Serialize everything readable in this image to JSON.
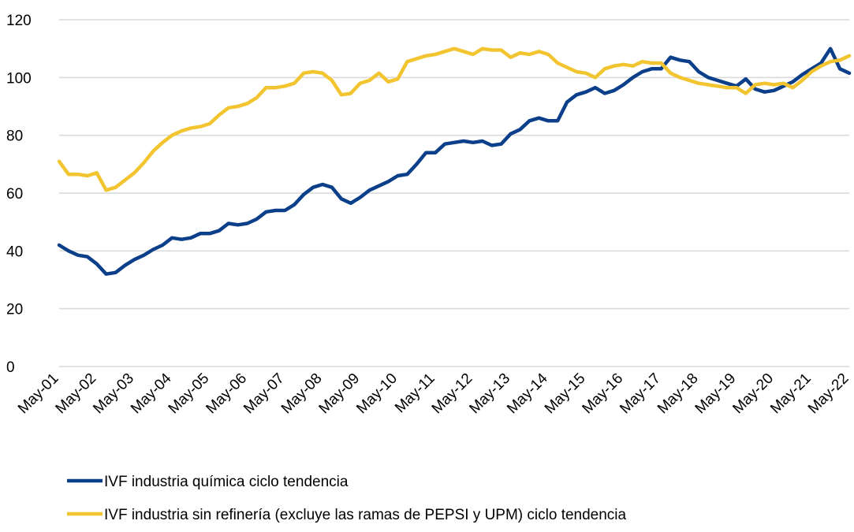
{
  "chart_data": {
    "type": "line",
    "categories": [
      "May-01",
      null,
      null,
      null,
      "May-02",
      null,
      null,
      null,
      "May-03",
      null,
      null,
      null,
      "May-04",
      null,
      null,
      null,
      "May-05",
      null,
      null,
      null,
      "May-06",
      null,
      null,
      null,
      "May-07",
      null,
      null,
      null,
      "May-08",
      null,
      null,
      null,
      "May-09",
      null,
      null,
      null,
      "May-10",
      null,
      null,
      null,
      "May-11",
      null,
      null,
      null,
      "May-12",
      null,
      null,
      null,
      "May-13",
      null,
      null,
      null,
      "May-14",
      null,
      null,
      null,
      "May-15",
      null,
      null,
      null,
      "May-16",
      null,
      null,
      null,
      "May-17",
      null,
      null,
      null,
      "May-18",
      null,
      null,
      null,
      "May-19",
      null,
      null,
      null,
      "May-20",
      null,
      null,
      null,
      "May-21",
      null,
      null,
      null,
      "May-22"
    ],
    "series": [
      {
        "name": "IVF industria química ciclo tendencia",
        "color": "#0b3f8a",
        "values": [
          42,
          40,
          38.5,
          38,
          35.5,
          32,
          32.5,
          35,
          37,
          38.5,
          40.5,
          42,
          44.5,
          44,
          44.5,
          46,
          46,
          47,
          49.5,
          49,
          49.5,
          51,
          53.5,
          54,
          54,
          56,
          59.5,
          62,
          63,
          62,
          58,
          56.5,
          58.5,
          61,
          62.5,
          64,
          66,
          66.5,
          70,
          74,
          74,
          77,
          77.5,
          78,
          77.5,
          78,
          76.5,
          77,
          80.5,
          82,
          85,
          86,
          85,
          85,
          91.5,
          94,
          95,
          96.5,
          94.5,
          95.5,
          97.5,
          100,
          102,
          103,
          103,
          107,
          106,
          105.5,
          102,
          100,
          99,
          98,
          97,
          99.5,
          96,
          95,
          95.5,
          97,
          98.5,
          101,
          103,
          105,
          110,
          103,
          101.5
        ]
      },
      {
        "name": "IVF industria sin refinería (excluye las ramas de PEPSI y UPM) ciclo tendencia",
        "color": "#f2c530",
        "values": [
          71,
          66.5,
          66.5,
          66,
          67,
          61,
          62,
          64.5,
          67,
          70.5,
          74.5,
          77.5,
          80,
          81.5,
          82.5,
          83,
          84,
          87,
          89.5,
          90,
          91,
          93,
          96.5,
          96.5,
          97,
          98,
          101.5,
          102,
          101.5,
          99,
          94,
          94.5,
          98,
          99,
          101.5,
          98.5,
          99.5,
          105.5,
          106.5,
          107.5,
          108,
          109,
          110,
          109,
          108,
          110,
          109.5,
          109.5,
          107,
          108.5,
          108,
          109,
          108,
          105,
          103.5,
          102,
          101.5,
          100,
          103,
          104,
          104.5,
          104,
          105.5,
          105,
          105,
          101.5,
          100,
          99,
          98,
          97.5,
          97,
          96.5,
          96.5,
          94.5,
          97.5,
          98,
          97.5,
          98,
          96.5,
          99,
          102,
          104,
          105.5,
          106,
          107.5
        ]
      }
    ],
    "ylim": [
      0,
      120
    ],
    "yticks": [
      0,
      20,
      40,
      60,
      80,
      100,
      120
    ],
    "grid": true,
    "legend": "bottom"
  }
}
